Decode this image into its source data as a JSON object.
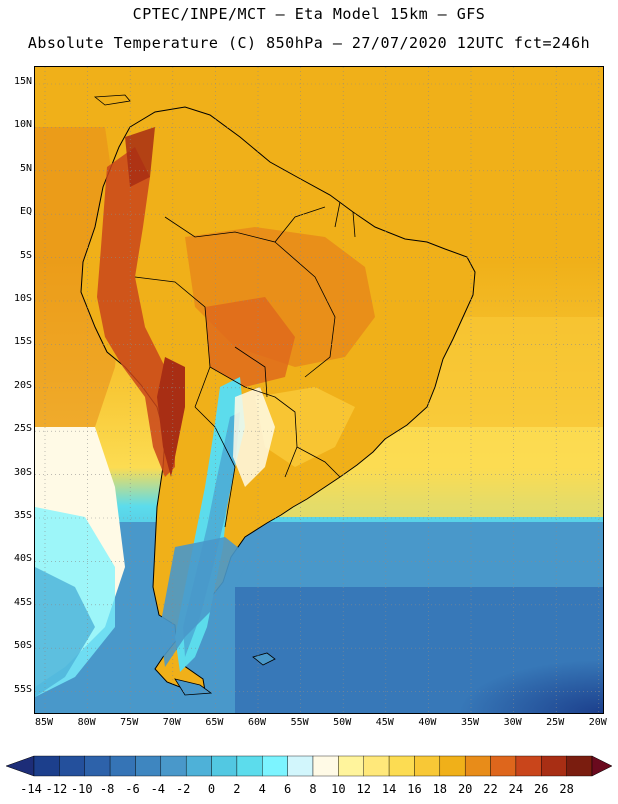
{
  "title_line1": "CPTEC/INPE/MCT –  Eta Model 15km – GFS",
  "title_line2": "Absolute Temperature (C) 850hPa – 27/07/2020 12UTC fct=246h",
  "lat_labels": [
    "15N",
    "10N",
    "5N",
    "EQ",
    "5S",
    "10S",
    "15S",
    "20S",
    "25S",
    "30S",
    "35S",
    "40S",
    "45S",
    "50S",
    "55S"
  ],
  "lon_labels": [
    "85W",
    "80W",
    "75W",
    "70W",
    "65W",
    "60W",
    "55W",
    "50W",
    "45W",
    "40W",
    "35W",
    "30W",
    "25W",
    "20W"
  ],
  "colorbar": {
    "labels": [
      "-14",
      "-12",
      "-10",
      "-8",
      "-6",
      "-4",
      "-2",
      "0",
      "2",
      "4",
      "6",
      "8",
      "10",
      "12",
      "14",
      "16",
      "18",
      "20",
      "22",
      "24",
      "26",
      "28"
    ],
    "colors": [
      "#1c3f8c",
      "#24509c",
      "#2d62aa",
      "#3574b6",
      "#3e86c0",
      "#4998ca",
      "#4eb1d8",
      "#52c8e2",
      "#5cdcec",
      "#7cf4ff",
      "#d2f6fc",
      "#fffae6",
      "#fff49c",
      "#ffe87a",
      "#fcdc52",
      "#f8c836",
      "#f0b019",
      "#e88c19",
      "#de661c",
      "#c9451b",
      "#a82e14",
      "#7a1d0f"
    ],
    "low_arrow": "#1d2d78",
    "high_arrow": "#6a0a1e"
  }
}
